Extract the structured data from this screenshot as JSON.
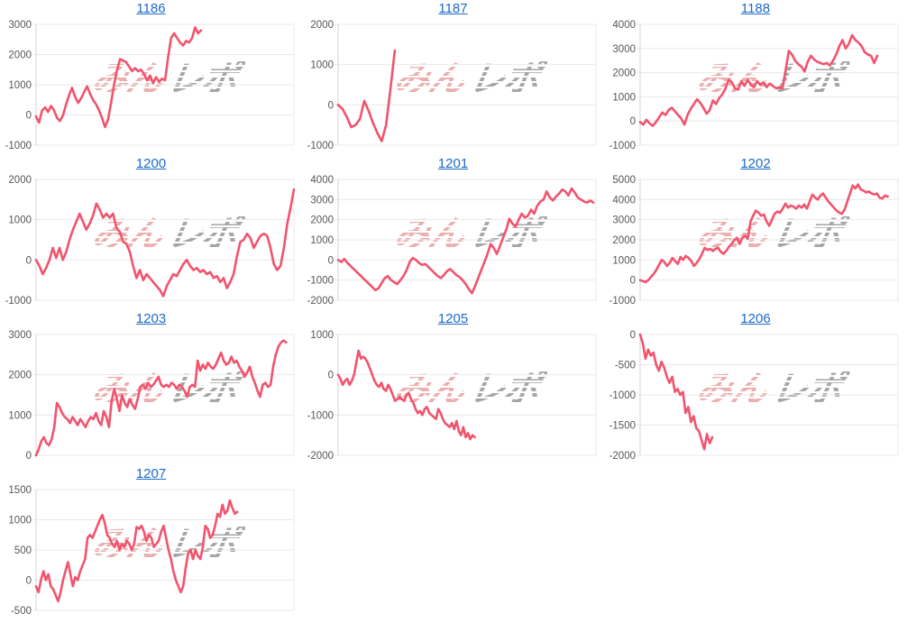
{
  "page": {
    "background": "#ffffff"
  },
  "styles": {
    "line_color": "#f2536d",
    "grid_color": "#e9e9e9",
    "axis_color": "#d6d6d6",
    "tick_label_color": "#565656",
    "link_color": "#1b6ac9",
    "watermark_pink": "#ecaeae",
    "watermark_gray": "#a6a6a6"
  },
  "watermark": {
    "part1": "みん",
    "part2": "レポ"
  },
  "chart_data": [
    {
      "type": "line",
      "title": "1186",
      "xlabel": "",
      "ylabel": "",
      "grid": true,
      "legend": "none",
      "ylim": [
        -1000,
        3000
      ],
      "ytick_step": 1000,
      "end_fraction": 0.64,
      "values": [
        -50,
        -250,
        150,
        250,
        100,
        300,
        150,
        -100,
        -200,
        0,
        350,
        650,
        900,
        600,
        400,
        550,
        750,
        950,
        700,
        500,
        350,
        150,
        -100,
        -400,
        -150,
        400,
        1000,
        1500,
        1850,
        1800,
        1750,
        1600,
        1450,
        1550,
        1450,
        1500,
        1350,
        1150,
        1300,
        1050,
        1250,
        1100,
        1200,
        1150,
        1900,
        2550,
        2700,
        2550,
        2400,
        2300,
        2450,
        2400,
        2550,
        2900,
        2700,
        2800
      ]
    },
    {
      "type": "line",
      "title": "1187",
      "xlabel": "",
      "ylabel": "",
      "grid": true,
      "legend": "none",
      "ylim": [
        -1000,
        2000
      ],
      "ytick_step": 1000,
      "end_fraction": 0.22,
      "values": [
        0,
        -100,
        -300,
        -550,
        -500,
        -350,
        100,
        -150,
        -450,
        -700,
        -900,
        -500,
        400,
        1350
      ]
    },
    {
      "type": "line",
      "title": "1188",
      "xlabel": "",
      "ylabel": "",
      "grid": true,
      "legend": "none",
      "ylim": [
        -1000,
        4000
      ],
      "ytick_step": 1000,
      "end_fraction": 0.92,
      "values": [
        -50,
        -150,
        50,
        -100,
        -200,
        -50,
        150,
        350,
        250,
        450,
        550,
        400,
        250,
        100,
        -150,
        250,
        500,
        700,
        900,
        750,
        550,
        300,
        450,
        850,
        700,
        950,
        1100,
        1350,
        1700,
        1600,
        1350,
        1300,
        1650,
        1450,
        1700,
        1500,
        1400,
        1650,
        1500,
        1600,
        1400,
        1550,
        1450,
        1350,
        1400,
        1350,
        2100,
        2900,
        2750,
        2500,
        2350,
        2250,
        2050,
        2450,
        2700,
        2550,
        2450,
        2400,
        2350,
        2400,
        2300,
        2500,
        2750,
        3100,
        3350,
        3000,
        3200,
        3550,
        3350,
        3250,
        3100,
        2850,
        2750,
        2700,
        2400,
        2700
      ]
    },
    {
      "type": "line",
      "title": "1200",
      "xlabel": "",
      "ylabel": "",
      "grid": true,
      "legend": "none",
      "ylim": [
        -1000,
        2000
      ],
      "ytick_step": 1000,
      "end_fraction": 1.0,
      "values": [
        0,
        -150,
        -350,
        -200,
        0,
        300,
        50,
        300,
        0,
        200,
        500,
        750,
        950,
        1150,
        950,
        750,
        900,
        1100,
        1400,
        1250,
        1050,
        1150,
        1050,
        1150,
        800,
        700,
        450,
        400,
        200,
        -150,
        -450,
        -250,
        -500,
        -350,
        -450,
        -550,
        -650,
        -750,
        -900,
        -650,
        -500,
        -350,
        -400,
        -250,
        -100,
        0,
        -150,
        -250,
        -200,
        -300,
        -250,
        -350,
        -300,
        -450,
        -400,
        -550,
        -450,
        -700,
        -550,
        -350,
        100,
        450,
        500,
        650,
        550,
        300,
        450,
        600,
        650,
        600,
        300,
        -100,
        -250,
        -150,
        300,
        900,
        1300,
        1750
      ]
    },
    {
      "type": "line",
      "title": "1201",
      "xlabel": "",
      "ylabel": "",
      "grid": true,
      "legend": "none",
      "ylim": [
        -2000,
        4000
      ],
      "ytick_step": 1000,
      "end_fraction": 0.99,
      "values": [
        0,
        -100,
        50,
        -150,
        -300,
        -450,
        -600,
        -750,
        -900,
        -1050,
        -1200,
        -1350,
        -1500,
        -1400,
        -1150,
        -900,
        -800,
        -1000,
        -1100,
        -1200,
        -1000,
        -800,
        -500,
        -100,
        100,
        0,
        -150,
        -250,
        -200,
        -350,
        -500,
        -650,
        -800,
        -900,
        -750,
        -550,
        -450,
        -600,
        -750,
        -850,
        -1000,
        -1200,
        -1450,
        -1650,
        -1300,
        -900,
        -500,
        -100,
        300,
        800,
        600,
        300,
        700,
        1100,
        1500,
        2050,
        1800,
        1650,
        2000,
        2300,
        2100,
        2200,
        2500,
        2300,
        2700,
        2900,
        3000,
        3400,
        3100,
        2950,
        3150,
        3300,
        3500,
        3400,
        3200,
        3550,
        3350,
        3100,
        3000,
        2900,
        2850,
        2950,
        2850
      ]
    },
    {
      "type": "line",
      "title": "1202",
      "xlabel": "",
      "ylabel": "",
      "grid": true,
      "legend": "none",
      "ylim": [
        -1000,
        5000
      ],
      "ytick_step": 1000,
      "end_fraction": 0.96,
      "values": [
        0,
        -50,
        -100,
        0,
        150,
        300,
        500,
        750,
        1000,
        900,
        700,
        850,
        1100,
        950,
        800,
        1150,
        1000,
        1200,
        1100,
        950,
        700,
        850,
        1050,
        1300,
        1600,
        1500,
        1550,
        1450,
        1550,
        1600,
        1400,
        1300,
        1450,
        1650,
        1800,
        2000,
        2100,
        1800,
        2100,
        2200,
        2050,
        2900,
        3200,
        3450,
        3350,
        3200,
        3250,
        2900,
        2700,
        3000,
        3300,
        3400,
        3350,
        3550,
        3800,
        3600,
        3700,
        3650,
        3550,
        3700,
        3600,
        3750,
        3550,
        3900,
        4250,
        4100,
        4000,
        4200,
        4300,
        4100,
        3900,
        3750,
        3600,
        3450,
        3350,
        3300,
        3500,
        3900,
        4300,
        4700,
        4550,
        4750,
        4500,
        4450,
        4350,
        4400,
        4300,
        4250,
        4300,
        4100,
        4050,
        4200,
        4150
      ]
    },
    {
      "type": "line",
      "title": "1203",
      "xlabel": "",
      "ylabel": "",
      "grid": true,
      "legend": "none",
      "ylim": [
        0,
        3000
      ],
      "ytick_step": 1000,
      "end_fraction": 0.97,
      "values": [
        0,
        150,
        350,
        450,
        300,
        250,
        400,
        700,
        1300,
        1200,
        1050,
        950,
        900,
        800,
        950,
        850,
        750,
        900,
        800,
        700,
        850,
        950,
        900,
        1050,
        850,
        750,
        1100,
        950,
        700,
        1350,
        1650,
        1400,
        1100,
        1500,
        1300,
        1200,
        1400,
        1250,
        1150,
        1400,
        1700,
        1750,
        1650,
        1800,
        1700,
        1750,
        1850,
        1950,
        1750,
        1700,
        1750,
        1700,
        1800,
        1750,
        1650,
        1750,
        1700,
        1600,
        1450,
        1700,
        1750,
        1700,
        2350,
        2100,
        2250,
        2150,
        2300,
        2200,
        2150,
        2250,
        2400,
        2550,
        2350,
        2250,
        2300,
        2450,
        2300,
        2350,
        2200,
        2100,
        1950,
        2050,
        2200,
        1950,
        1800,
        1600,
        1450,
        1750,
        1800,
        1700,
        1750,
        2200,
        2500,
        2700,
        2800,
        2850,
        2800
      ]
    },
    {
      "type": "line",
      "title": "1205",
      "xlabel": "",
      "ylabel": "",
      "grid": true,
      "legend": "none",
      "ylim": [
        -2000,
        1000
      ],
      "ytick_step": 1000,
      "end_fraction": 0.53,
      "values": [
        0,
        -100,
        -250,
        -150,
        -100,
        -250,
        -150,
        0,
        300,
        600,
        400,
        450,
        400,
        300,
        150,
        0,
        -150,
        -250,
        -300,
        -200,
        -350,
        -400,
        -250,
        -350,
        -500,
        -650,
        -600,
        -550,
        -600,
        -650,
        -500,
        -450,
        -600,
        -700,
        -850,
        -950,
        -900,
        -1000,
        -850,
        -800,
        -950,
        -1000,
        -1050,
        -1100,
        -850,
        -950,
        -1100,
        -1200,
        -1250,
        -1300,
        -1200,
        -1350,
        -1150,
        -1400,
        -1500,
        -1300,
        -1550,
        -1450,
        -1600,
        -1500,
        -1550
      ]
    },
    {
      "type": "line",
      "title": "1206",
      "xlabel": "",
      "ylabel": "",
      "grid": true,
      "legend": "none",
      "ylim": [
        -2000,
        0
      ],
      "ytick_step": 500,
      "end_fraction": 0.28,
      "values": [
        0,
        -150,
        -400,
        -250,
        -350,
        -300,
        -500,
        -600,
        -450,
        -550,
        -700,
        -800,
        -700,
        -950,
        -900,
        -1000,
        -950,
        -1300,
        -1200,
        -1450,
        -1350,
        -1550,
        -1600,
        -1750,
        -1900,
        -1650,
        -1800,
        -1700
      ]
    },
    {
      "type": "line",
      "title": "1207",
      "xlabel": "",
      "ylabel": "",
      "grid": true,
      "legend": "none",
      "ylim": [
        -500,
        1500
      ],
      "ytick_step": 500,
      "end_fraction": 0.78,
      "values": [
        -100,
        -200,
        0,
        150,
        0,
        100,
        -100,
        -150,
        -250,
        -350,
        -200,
        0,
        150,
        300,
        100,
        -100,
        50,
        0,
        150,
        250,
        350,
        700,
        750,
        700,
        800,
        900,
        1000,
        1080,
        950,
        750,
        700,
        600,
        550,
        650,
        500,
        600,
        550,
        650,
        600,
        500,
        600,
        880,
        850,
        900,
        800,
        650,
        750,
        700,
        550,
        600,
        650,
        800,
        900,
        700,
        500,
        350,
        150,
        0,
        -100,
        -200,
        -100,
        200,
        450,
        500,
        350,
        500,
        400,
        350,
        550,
        900,
        850,
        700,
        750,
        900,
        1100,
        1050,
        1250,
        1100,
        1150,
        1320,
        1200,
        1100,
        1130
      ]
    }
  ]
}
